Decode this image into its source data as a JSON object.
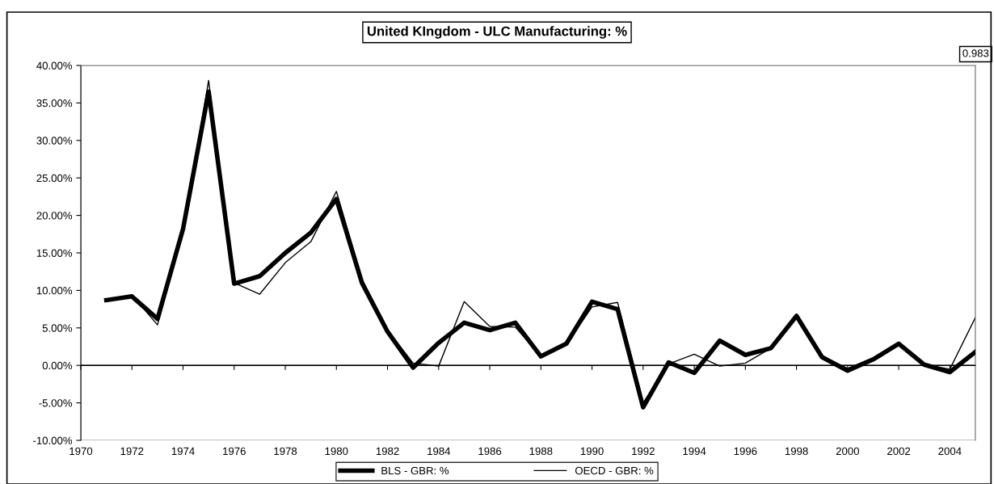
{
  "chart_data": {
    "type": "line",
    "title": "United KIngdom - ULC Manufacturing: %",
    "x": [
      1971,
      1972,
      1973,
      1974,
      1975,
      1976,
      1977,
      1978,
      1979,
      1980,
      1981,
      1982,
      1983,
      1984,
      1985,
      1986,
      1987,
      1988,
      1989,
      1990,
      1991,
      1992,
      1993,
      1994,
      1995,
      1996,
      1997,
      1998,
      1999,
      2000,
      2001,
      2002,
      2003,
      2004,
      2005
    ],
    "series": [
      {
        "name": "BLS - GBR: %",
        "color": "#000000",
        "values": [
          8.7,
          9.2,
          6.2,
          18.2,
          36.5,
          10.9,
          11.9,
          15.0,
          17.7,
          22.2,
          11.0,
          4.5,
          -0.3,
          3.0,
          5.7,
          4.7,
          5.7,
          1.2,
          2.9,
          8.5,
          7.5,
          -5.6,
          0.4,
          -1.0,
          3.3,
          1.4,
          2.3,
          6.6,
          1.1,
          -0.7,
          0.8,
          2.9,
          0.1,
          -0.9,
          1.8
        ]
      },
      {
        "name": "OECD - GBR: %",
        "color": "#000000",
        "values": [
          8.7,
          9.4,
          5.4,
          18.0,
          38.0,
          11.0,
          9.5,
          13.7,
          16.5,
          23.2,
          11.5,
          4.7,
          0.3,
          -0.1,
          8.5,
          5.2,
          5.1,
          1.2,
          2.8,
          7.8,
          8.4,
          -5.0,
          0.2,
          1.5,
          -0.1,
          0.3,
          2.3,
          6.6,
          1.1,
          -0.4,
          1.0,
          2.9,
          0.1,
          -0.5,
          6.4
        ]
      }
    ],
    "annotations": [
      "0.983"
    ],
    "xlim": [
      1970,
      2005
    ],
    "xticks": [
      1970,
      1972,
      1974,
      1976,
      1978,
      1980,
      1982,
      1984,
      1986,
      1988,
      1990,
      1992,
      1994,
      1996,
      1998,
      2000,
      2002,
      2004
    ],
    "ylim": [
      -10,
      40
    ],
    "yticks": [
      {
        "value": -10,
        "label": "-10.00%"
      },
      {
        "value": -5,
        "label": "-5.00%"
      },
      {
        "value": 0,
        "label": "0.00%"
      },
      {
        "value": 5,
        "label": "5.00%"
      },
      {
        "value": 10,
        "label": "10.00%"
      },
      {
        "value": 15,
        "label": "15.00%"
      },
      {
        "value": 20,
        "label": "20.00%"
      },
      {
        "value": 25,
        "label": "25.00%"
      },
      {
        "value": 30,
        "label": "30.00%"
      },
      {
        "value": 35,
        "label": "35.00%"
      },
      {
        "value": 40,
        "label": "40.00%"
      }
    ],
    "ref_lines": [
      {
        "axis": "y",
        "value": 0,
        "color": "#000000",
        "line_style": "solid"
      }
    ],
    "grid": false,
    "legend": "bottom",
    "marker": "none",
    "line_style": "solid"
  }
}
